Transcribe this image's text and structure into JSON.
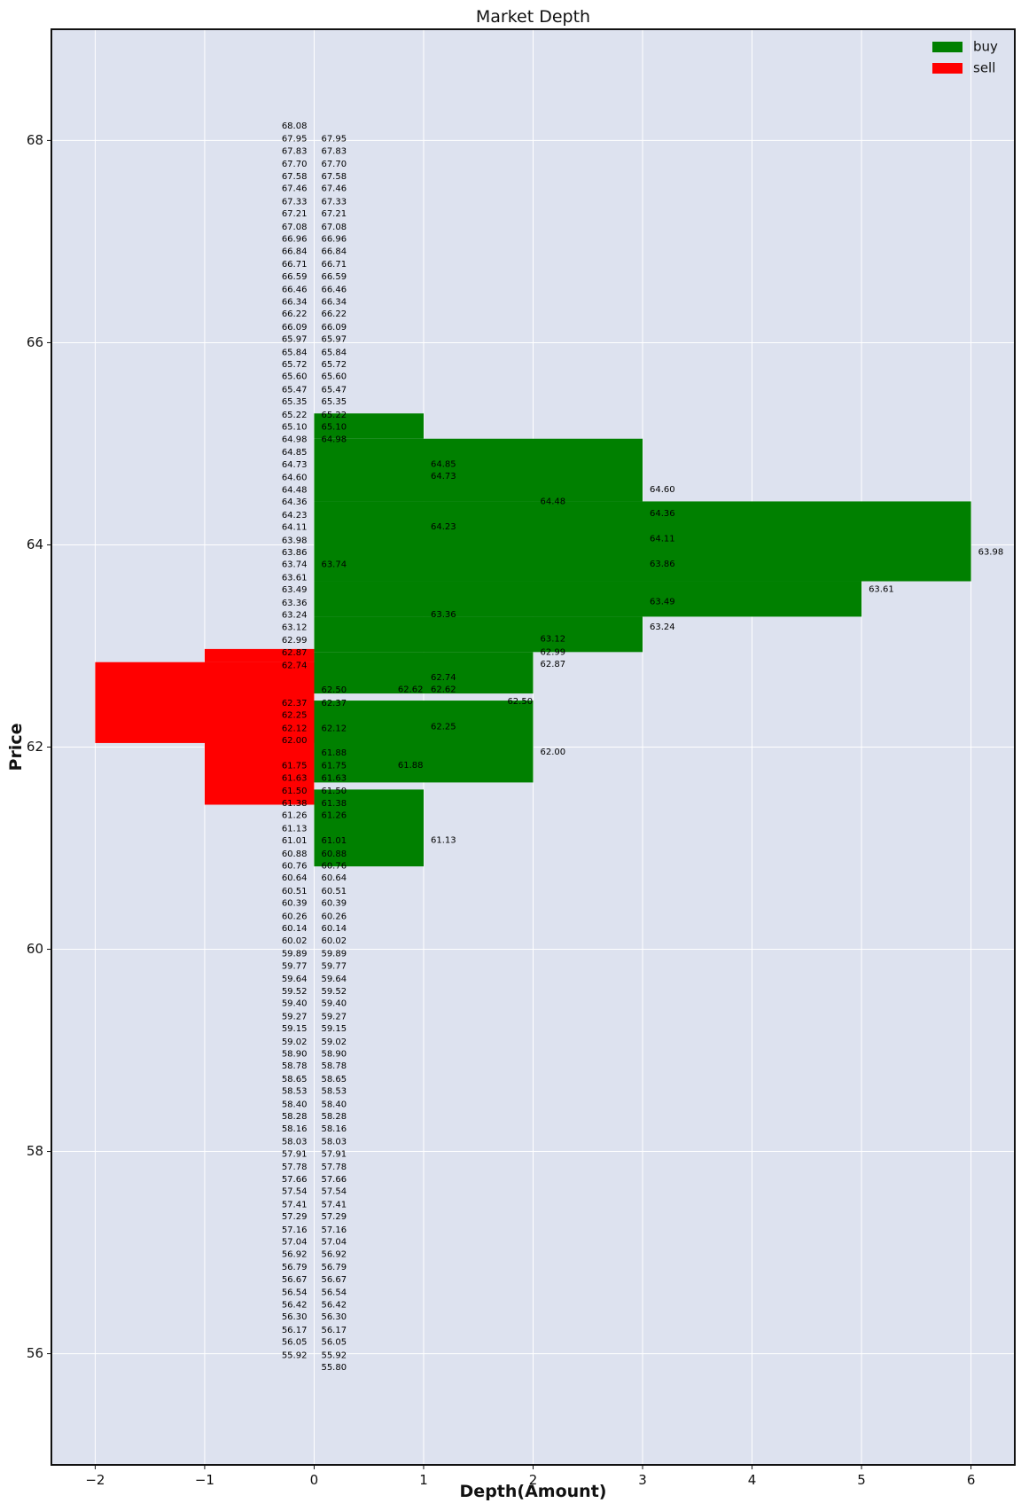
{
  "chart_data": {
    "type": "bar",
    "orientation": "horizontal",
    "title": "Market Depth",
    "xlabel": "Depth(Amount)",
    "ylabel": "Price",
    "xlim": [
      -2.4,
      6.4
    ],
    "ylim": [
      54.9,
      69.1
    ],
    "xticks": [
      -2,
      -1,
      0,
      1,
      2,
      3,
      4,
      5,
      6
    ],
    "xtick_labels": [
      "−2",
      "−1",
      "0",
      "1",
      "2",
      "3",
      "4",
      "5",
      "6"
    ],
    "yticks": [
      56,
      58,
      60,
      62,
      64,
      66,
      68
    ],
    "ytick_labels": [
      "56",
      "58",
      "60",
      "62",
      "64",
      "66",
      "68"
    ],
    "grid": true,
    "legend_position": "top-right",
    "series": [
      {
        "name": "buy",
        "color": "#008000",
        "bars": [
          {
            "x0": 0,
            "x1": 1,
            "y0": 60.82,
            "y1": 61.58
          },
          {
            "x0": 0,
            "x1": 2,
            "y0": 61.65,
            "y1": 62.46
          },
          {
            "x0": 0,
            "x1": 2,
            "y0": 62.53,
            "y1": 62.94
          },
          {
            "x0": 0,
            "x1": 3,
            "y0": 62.94,
            "y1": 63.29
          },
          {
            "x0": 0,
            "x1": 5,
            "y0": 63.29,
            "y1": 63.64
          },
          {
            "x0": 0,
            "x1": 6,
            "y0": 63.64,
            "y1": 64.43
          },
          {
            "x0": 0,
            "x1": 3,
            "y0": 64.43,
            "y1": 65.05
          },
          {
            "x0": 0,
            "x1": 1,
            "y0": 65.05,
            "y1": 65.3
          }
        ]
      },
      {
        "name": "sell",
        "color": "#ff0000",
        "bars": [
          {
            "x0": -1,
            "x1": 0,
            "y0": 61.43,
            "y1": 62.84
          },
          {
            "x0": -2,
            "x1": 0,
            "y0": 62.04,
            "y1": 62.84
          },
          {
            "x0": -1,
            "x1": 0,
            "y0": 62.84,
            "y1": 62.97
          }
        ]
      }
    ],
    "annotations": {
      "left_column_x": 0,
      "left_column": [
        "68.08",
        "67.95",
        "67.83",
        "67.70",
        "67.58",
        "67.46",
        "67.33",
        "67.21",
        "67.08",
        "66.96",
        "66.84",
        "66.71",
        "66.59",
        "66.46",
        "66.34",
        "66.22",
        "66.09",
        "65.97",
        "65.84",
        "65.72",
        "65.60",
        "65.47",
        "65.35",
        "65.22",
        "65.10",
        "64.98",
        "64.85",
        "64.73",
        "64.60",
        "64.48",
        "64.36",
        "64.23",
        "64.11",
        "63.98",
        "63.86",
        "63.74",
        "63.61",
        "63.49",
        "63.36",
        "63.24",
        "63.12",
        "62.99",
        "62.87",
        "62.74",
        "62.37",
        "62.25",
        "62.12",
        "62.00",
        "61.75",
        "61.63",
        "61.50",
        "61.38",
        "61.26",
        "61.13",
        "61.01",
        "60.88",
        "60.76",
        "60.64",
        "60.51",
        "60.39",
        "60.26",
        "60.14",
        "60.02",
        "59.89",
        "59.77",
        "59.64",
        "59.52",
        "59.40",
        "59.27",
        "59.15",
        "59.02",
        "58.90",
        "58.78",
        "58.65",
        "58.53",
        "58.40",
        "58.28",
        "58.16",
        "58.03",
        "57.91",
        "57.78",
        "57.66",
        "57.54",
        "57.41",
        "57.29",
        "57.16",
        "57.04",
        "56.92",
        "56.79",
        "56.67",
        "56.54",
        "56.42",
        "56.30",
        "56.17",
        "56.05",
        "55.92"
      ],
      "right_column_x": 0,
      "right_column": [
        "67.95",
        "67.83",
        "67.70",
        "67.58",
        "67.46",
        "67.33",
        "67.21",
        "67.08",
        "66.96",
        "66.84",
        "66.71",
        "66.59",
        "66.46",
        "66.34",
        "66.22",
        "66.09",
        "65.97",
        "65.84",
        "65.72",
        "65.60",
        "65.47",
        "65.35",
        "65.22",
        "65.10",
        "64.98",
        "63.74",
        "62.50",
        "62.37",
        "62.12",
        "61.88",
        "61.75",
        "61.63",
        "61.50",
        "61.38",
        "61.26",
        "61.01",
        "60.88",
        "60.76",
        "60.64",
        "60.51",
        "60.39",
        "60.26",
        "60.14",
        "60.02",
        "59.89",
        "59.77",
        "59.64",
        "59.52",
        "59.40",
        "59.27",
        "59.15",
        "59.02",
        "58.90",
        "58.78",
        "58.65",
        "58.53",
        "58.40",
        "58.28",
        "58.16",
        "58.03",
        "57.91",
        "57.78",
        "57.66",
        "57.54",
        "57.41",
        "57.29",
        "57.16",
        "57.04",
        "56.92",
        "56.79",
        "56.67",
        "56.54",
        "56.42",
        "56.30",
        "56.17",
        "56.05",
        "55.92",
        "55.80"
      ],
      "extra": [
        {
          "x": 1,
          "text": "64.85"
        },
        {
          "x": 1,
          "text": "64.73"
        },
        {
          "x": 1,
          "text": "64.23"
        },
        {
          "x": 1,
          "text": "63.36"
        },
        {
          "x": 1,
          "text": "62.74"
        },
        {
          "x": 1,
          "text": "62.62"
        },
        {
          "x": 1,
          "text": "62.25"
        },
        {
          "x": 1,
          "text": "61.13"
        },
        {
          "x": 0.7,
          "text": "62.62",
          "y": 62.57
        },
        {
          "x": 0.7,
          "text": "61.88",
          "y": 61.82
        },
        {
          "x": 1.7,
          "text": "62.50",
          "y": 62.45
        },
        {
          "x": 2,
          "text": "64.48"
        },
        {
          "x": 2,
          "text": "63.12"
        },
        {
          "x": 2,
          "text": "62.99"
        },
        {
          "x": 2,
          "text": "62.87"
        },
        {
          "x": 2,
          "text": "62.00"
        },
        {
          "x": 3,
          "text": "64.60"
        },
        {
          "x": 3,
          "text": "64.36"
        },
        {
          "x": 3,
          "text": "64.11"
        },
        {
          "x": 3,
          "text": "63.86"
        },
        {
          "x": 3,
          "text": "63.49"
        },
        {
          "x": 3,
          "text": "63.24"
        },
        {
          "x": 5,
          "text": "63.61"
        },
        {
          "x": 6,
          "text": "63.98"
        }
      ]
    }
  }
}
